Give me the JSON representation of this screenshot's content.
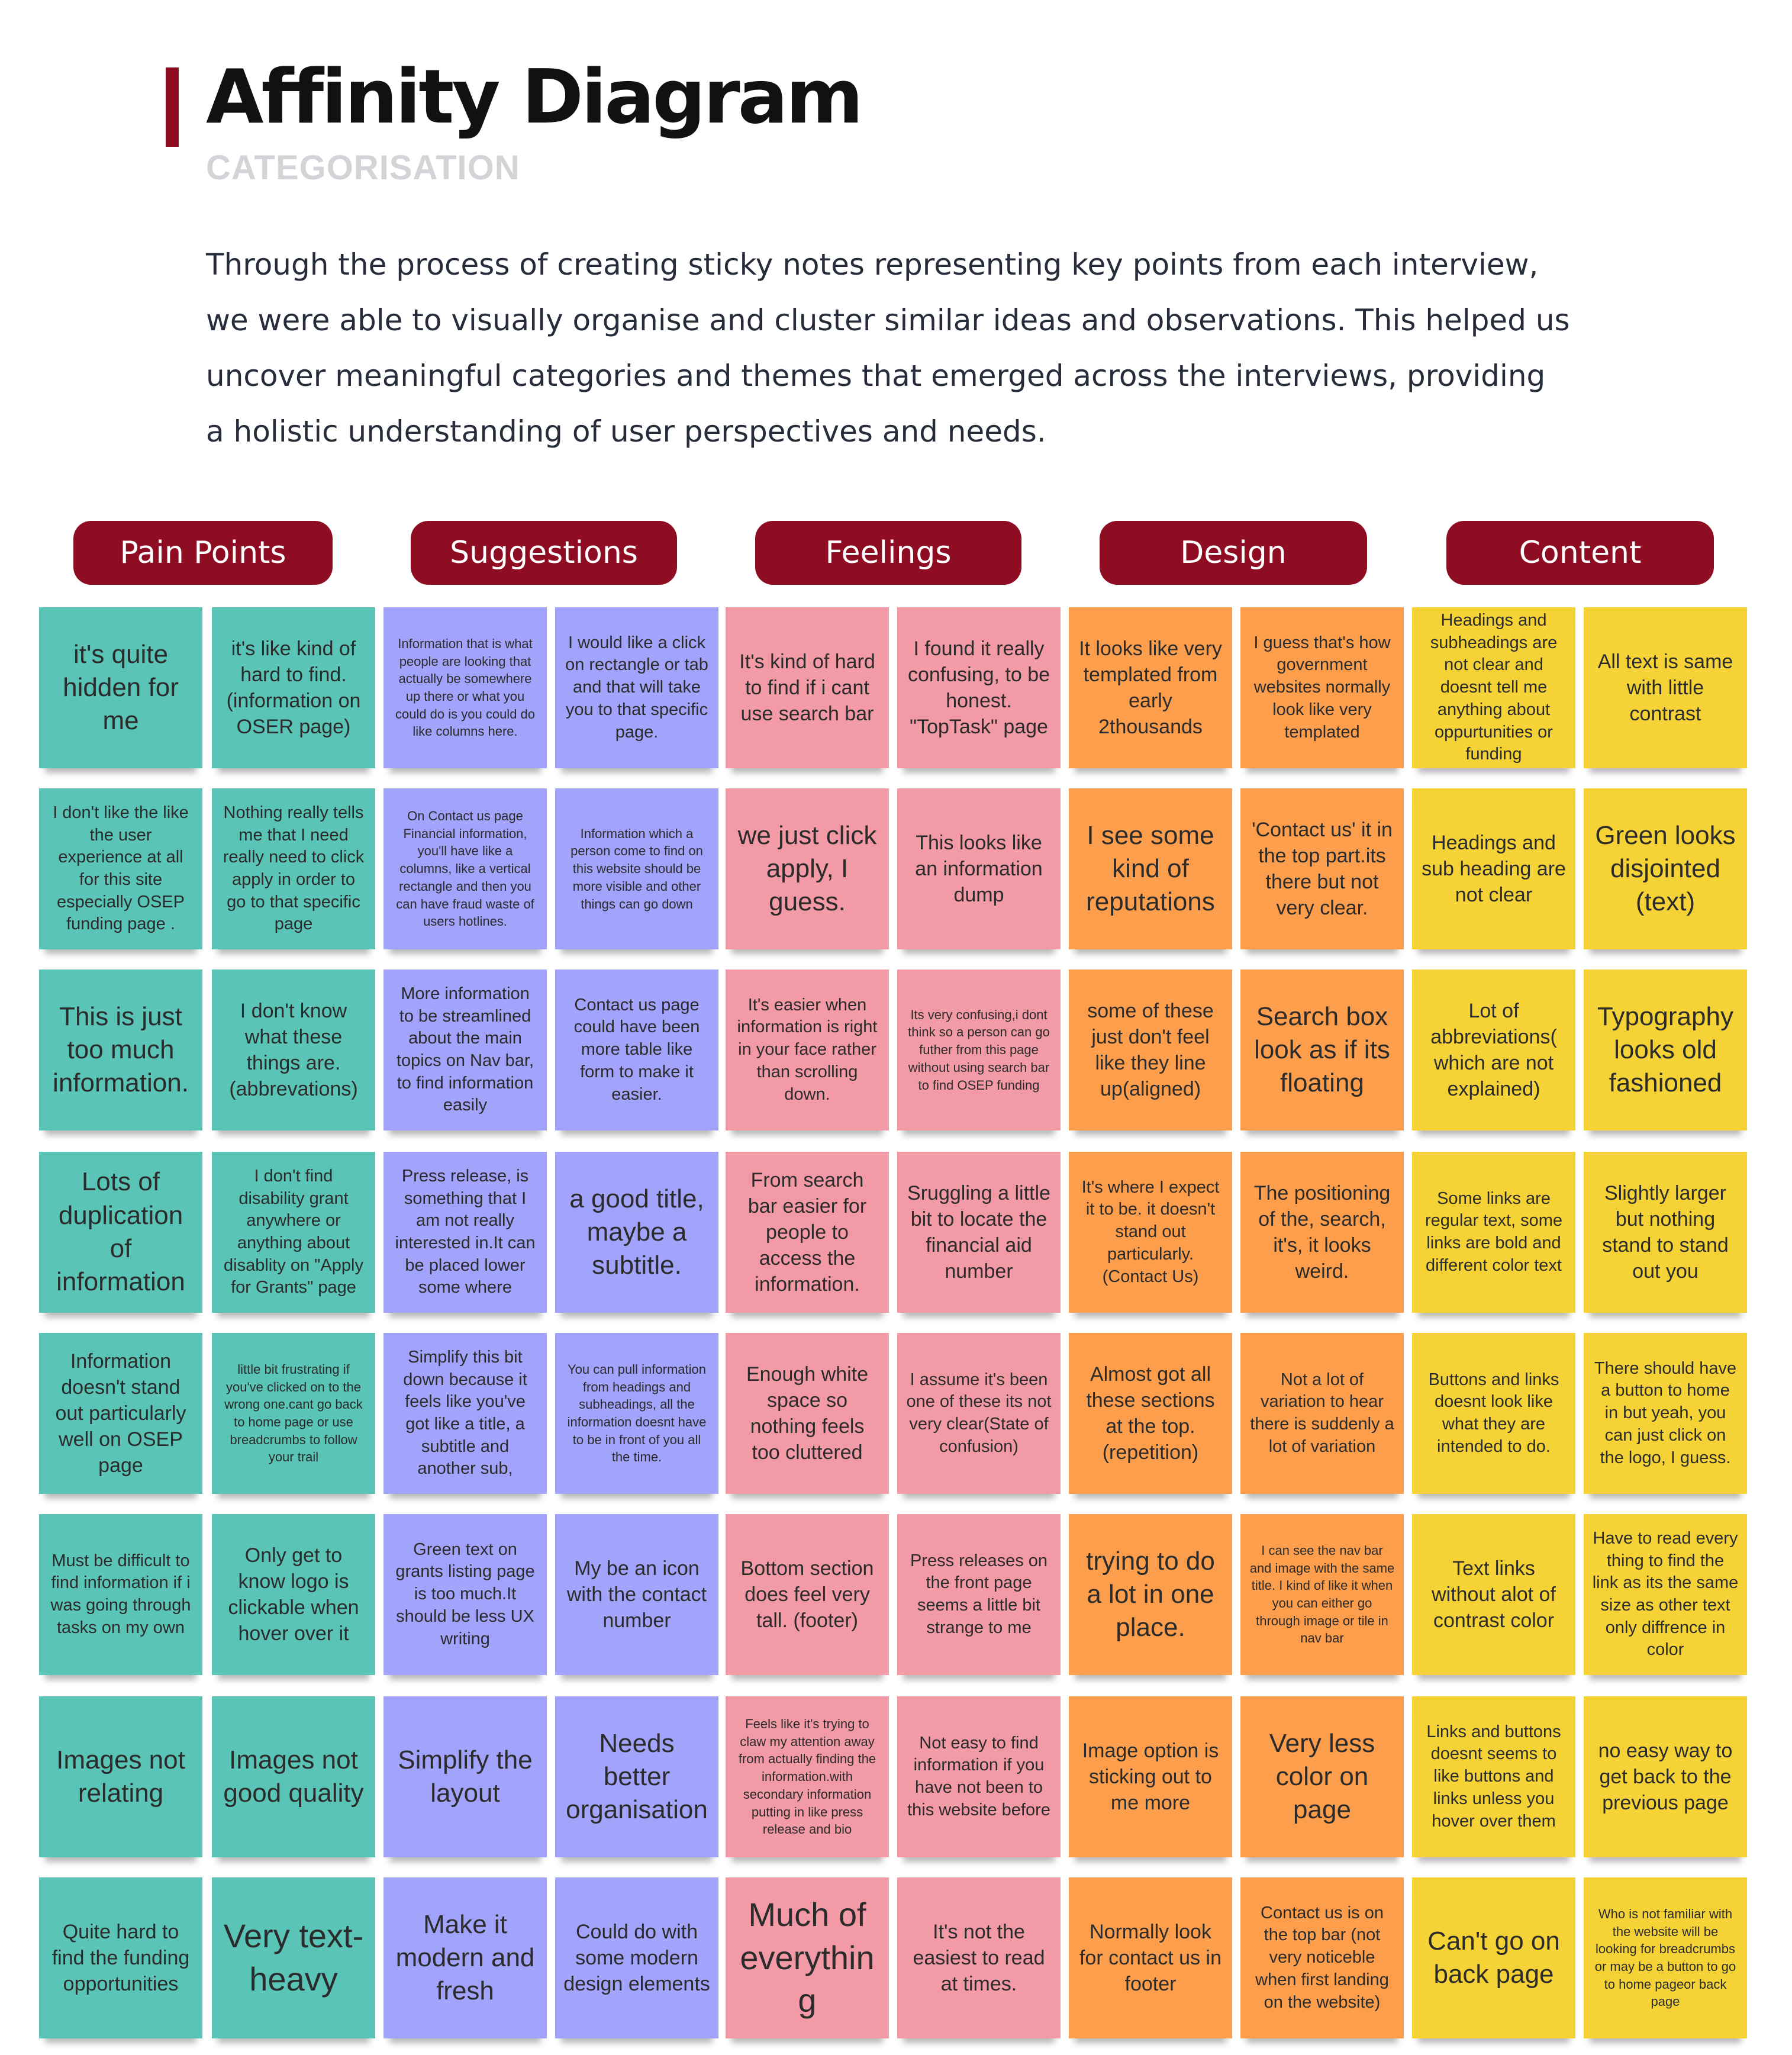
{
  "header": {
    "title": "Affinity Diagram",
    "subtitle": "CATEGORISATION",
    "intro": [
      "Through the process of creating sticky notes representing key points from each interview,",
      "we were able to visually organise and cluster similar ideas and observations. This helped us",
      "uncover meaningful categories and themes that emerged across the interviews, providing",
      "a holistic understanding of user perspectives and needs."
    ]
  },
  "colors": {
    "accent": "#8e0d23",
    "pain_points": "#5ac4b6",
    "suggestions": "#a2a3fb",
    "feelings": "#f29aa6",
    "design": "#fd9e4c",
    "content": "#f5d337"
  },
  "categories": [
    {
      "label": "Pain Points",
      "color": "teal",
      "notes": [
        [
          "it's quite hidden for me",
          "it's like kind of hard to find. (information on OSER page)"
        ],
        [
          "I don't like the like the user experience at all for this site especially OSEP funding page .",
          "Nothing really tells me that I need really need to click apply in order to go to that specific page"
        ],
        [
          "This is just too much information.",
          "I don't know what these things are. (abbrevations)"
        ],
        [
          "Lots of duplication of information",
          "I don't find disability grant anywhere or anything about disablity on \"Apply for Grants\" page"
        ],
        [
          "Information doesn't stand out particularly well on OSEP page",
          "little bit frustrating if you've clicked on to the wrong one.cant go back to home page or use breadcrumbs to follow your trail"
        ],
        [
          "Must be difficult to find information if i was going through tasks on my own",
          "Only get to know logo is clickable when hover over it"
        ],
        [
          "Images not relating",
          "Images not good quality"
        ],
        [
          "Quite hard to find the funding opportunities",
          "Very text-heavy"
        ]
      ]
    },
    {
      "label": "Suggestions",
      "color": "violet",
      "notes": [
        [
          "Information that is what people are looking that actually be somewhere up there or what you could do is you could do like columns here.",
          "I would like a click on rectangle or tab and that will take you to that specific page."
        ],
        [
          "On Contact us page Financial information, you'll have like a columns, like a vertical rectangle and then you can have fraud waste of users hotlines.",
          "Information which a person come to find on this website should be more visible and other things can go down"
        ],
        [
          "More information to be streamlined about the main topics on Nav bar, to find information easily",
          "Contact us page could have been more table like form to make it easier."
        ],
        [
          "Press release, is something that I am not really interested in.It can be placed lower some where",
          "a good title, maybe a subtitle."
        ],
        [
          "Simplify this bit down because it feels like you've got like a title, a subtitle and another sub,",
          "You can pull information from headings and subheadings, all the information doesnt have to be in front of you all the time."
        ],
        [
          "Green text on grants listing page is too much.It should be less UX writing",
          "My be an icon with the contact number"
        ],
        [
          "Simplify the layout",
          "Needs better organisation"
        ],
        [
          "Make it modern and fresh",
          "Could do with some modern design elements"
        ]
      ]
    },
    {
      "label": "Feelings",
      "color": "pink",
      "notes": [
        [
          "It's kind of hard to find if i cant use search bar",
          "I found it really confusing, to be honest. \"TopTask\" page"
        ],
        [
          "we just click apply, I guess.",
          "This looks like an information dump"
        ],
        [
          "It's easier when information is right in your face rather than scrolling down.",
          "Its very confusing,i dont think so a person can go futher from this page without using search bar to find OSEP funding"
        ],
        [
          "From search bar easier for people to access the information.",
          "Sruggling a little bit to locate the financial aid number"
        ],
        [
          "Enough white space so nothing feels too cluttered",
          "I assume it's been one of these its not very clear(State of confusion)"
        ],
        [
          "Bottom section does feel very tall. (footer)",
          "Press releases on the front page seems a little bit strange to me"
        ],
        [
          "Feels like it's trying to claw my attention away from actually finding the information.with secondary information putting in like press release and bio",
          "Not easy to find information if you have not been to this website before"
        ],
        [
          "Much of everything",
          "It's not the easiest to read at times."
        ]
      ]
    },
    {
      "label": "Design",
      "color": "orange",
      "notes": [
        [
          "It looks like very templated from early 2thousands",
          "I guess that's how government websites normally look like very templated"
        ],
        [
          "I  see some kind of reputations",
          "'Contact us' it in the top part.its there but not very clear."
        ],
        [
          "some of these just don't feel like they line up(aligned)",
          "Search box look as if its floating"
        ],
        [
          "It's where I expect it to be. it doesn't stand out particularly. (Contact Us)",
          "The positioning of the, search, it's, it looks weird."
        ],
        [
          "Almost got all these sections at the top. (repetition)",
          "Not a lot of variation to hear there is suddenly a lot of variation"
        ],
        [
          "trying to do a lot in one place.",
          "I can see the nav bar and image with the same title. I kind of like it when you can either go through image or tile in nav bar"
        ],
        [
          "Image option is sticking out to me more",
          "Very less color on page"
        ],
        [
          "Normally look for contact us in footer",
          "Contact us is on the top bar (not very noticeble when first landing on the website)"
        ]
      ]
    },
    {
      "label": "Content",
      "color": "yellow",
      "notes": [
        [
          "Headings and subheadings are not clear and doesnt tell me anything about oppurtunities or funding",
          "All text is same with little contrast"
        ],
        [
          "Headings and sub heading are not clear",
          "Green looks disjointed (text)"
        ],
        [
          "Lot of abbreviations( which are not explained)",
          "Typography looks old fashioned"
        ],
        [
          "Some links are regular text, some links are bold and different color text",
          "Slightly larger but nothing stand to stand out you"
        ],
        [
          "Buttons and links doesnt look like what they are intended to do.",
          "There should have a button to home in but yeah, you can just click on the logo, I guess."
        ],
        [
          "Text links without alot of contrast color",
          "Have to read every thing to find the link as its the same size as other text only diffrence in color"
        ],
        [
          "Links and buttons doesnt seems to like buttons and links unless you hover over them",
          "no easy way to get back to the previous page"
        ],
        [
          "Can't go on back page",
          "Who is not familiar with the website will be looking for breadcrumbs or may be a button to go to home pageor back page"
        ]
      ]
    }
  ]
}
